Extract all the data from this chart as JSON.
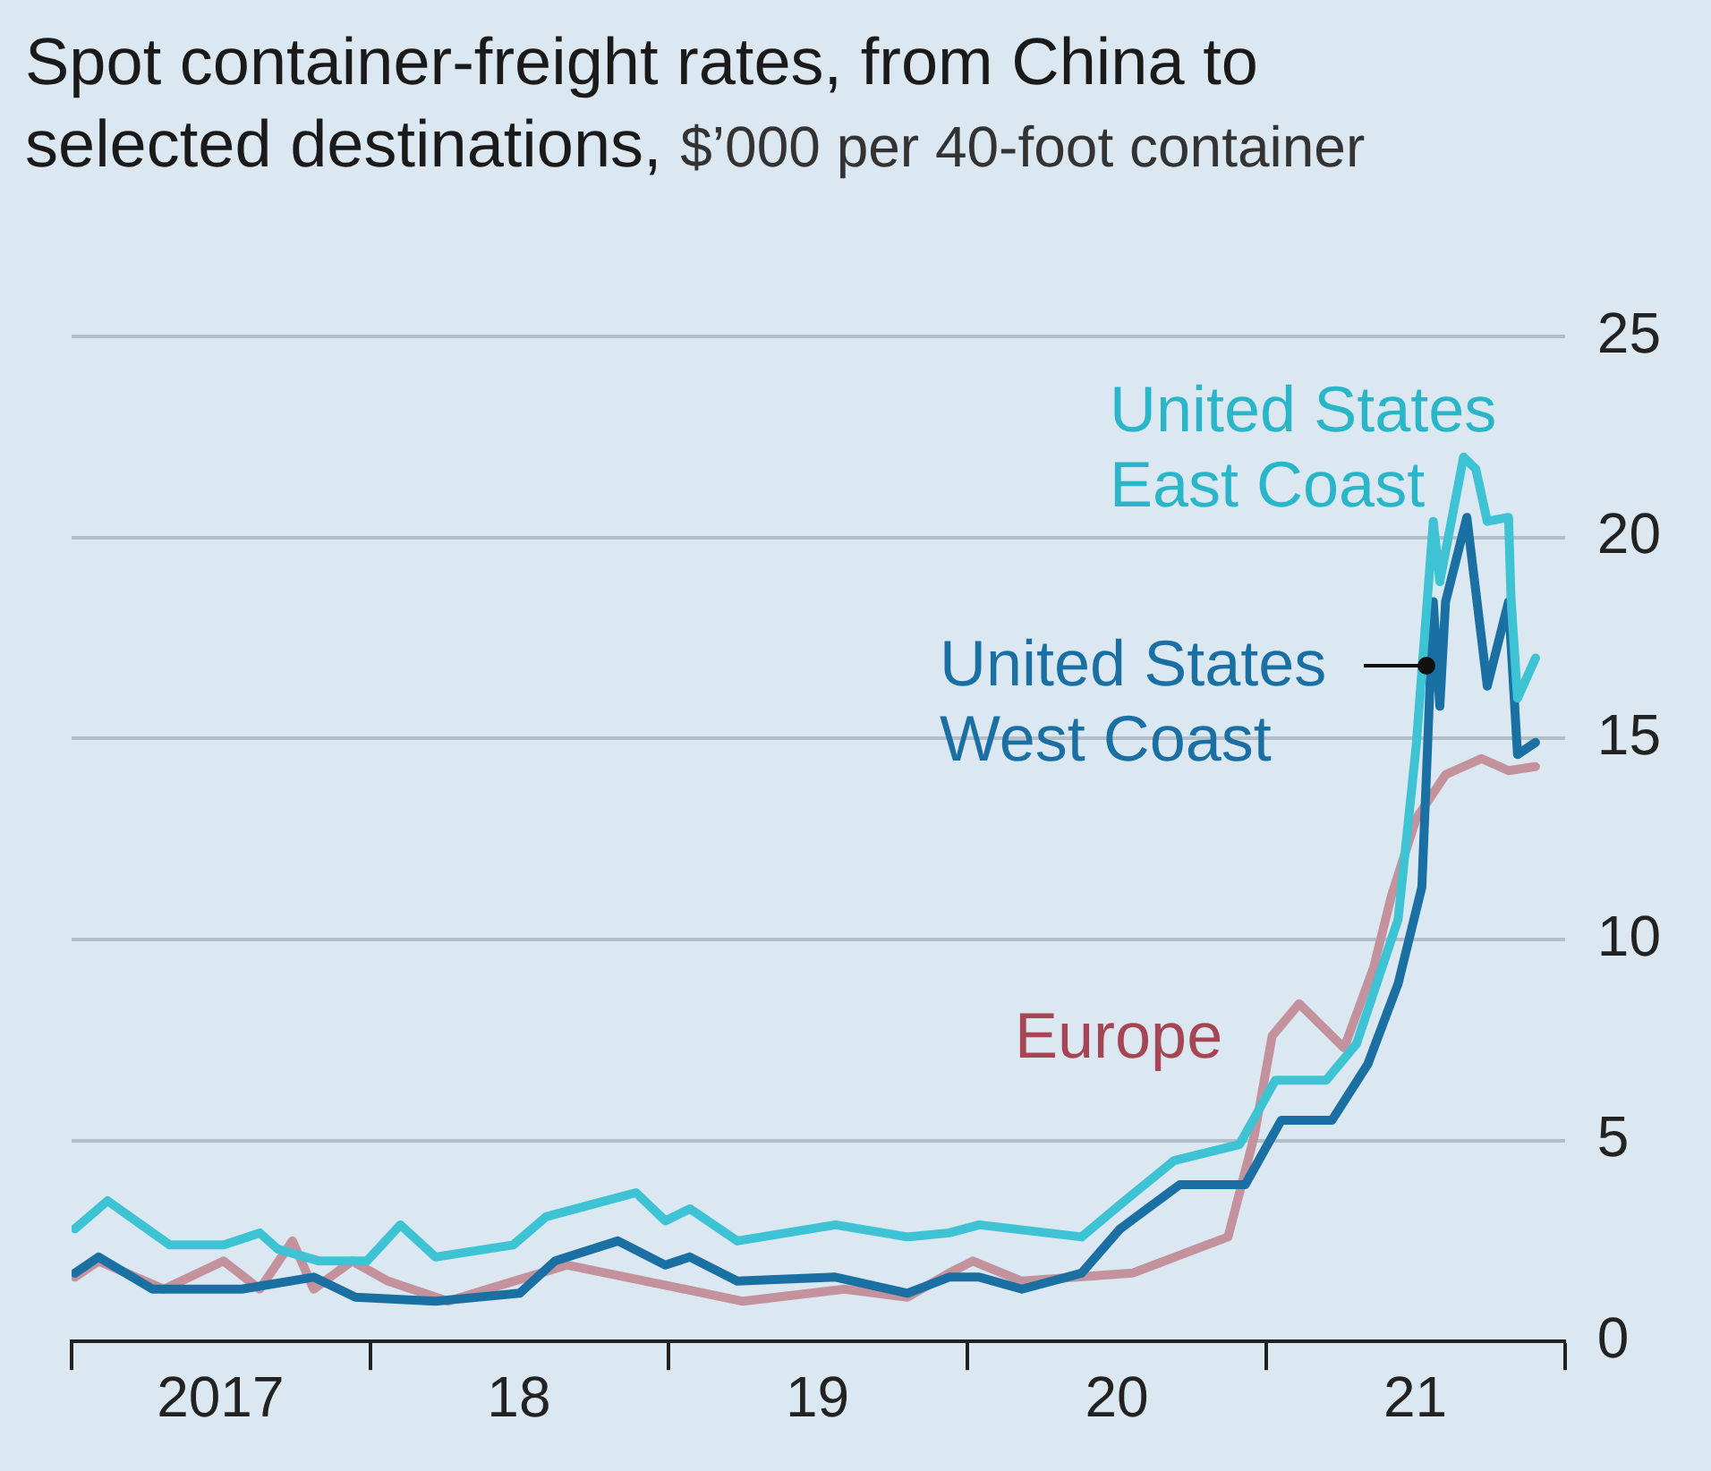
{
  "chart_data": {
    "type": "line",
    "title": "Spot container-freight rates, from China to selected destinations,",
    "subtitle": "$’000 per 40-foot container",
    "xlim": [
      "2017-01-01",
      "2022-01-01"
    ],
    "xticks": [
      {
        "value": "2017-01-01",
        "label": null
      },
      {
        "value": "2017-07-02",
        "label": "2017"
      },
      {
        "value": "2018-01-01",
        "label": null
      },
      {
        "value": "2018-07-02",
        "label": "18"
      },
      {
        "value": "2019-01-01",
        "label": null
      },
      {
        "value": "2019-07-02",
        "label": "19"
      },
      {
        "value": "2020-01-01",
        "label": null
      },
      {
        "value": "2020-07-02",
        "label": "20"
      },
      {
        "value": "2021-01-01",
        "label": null
      },
      {
        "value": "2021-07-02",
        "label": "21"
      },
      {
        "value": "2022-01-01",
        "label": null
      }
    ],
    "ylim": [
      0,
      25
    ],
    "yticks": [
      0,
      5,
      10,
      15,
      20,
      25
    ],
    "grid": "y",
    "legend": false,
    "marker": "none",
    "line_style": "solid",
    "series": [
      {
        "name": "United States East Coast",
        "color": "#3ec3d5",
        "x": [
          "2017-01-05",
          "2017-02-14",
          "2017-05-01",
          "2017-07-06",
          "2017-08-19",
          "2017-09-10",
          "2017-10-31",
          "2017-12-28",
          "2018-02-07",
          "2018-03-22",
          "2018-06-25",
          "2018-08-04",
          "2018-09-28",
          "2018-11-22",
          "2018-12-28",
          "2019-01-27",
          "2019-03-26",
          "2019-07-24",
          "2019-10-20",
          "2019-12-10",
          "2020-01-16",
          "2020-05-20",
          "2020-07-06",
          "2020-09-10",
          "2020-11-29",
          "2021-01-12",
          "2021-03-15",
          "2021-04-21",
          "2021-06-11",
          "2021-07-03",
          "2021-07-24",
          "2021-08-01",
          "2021-08-30",
          "2021-09-14",
          "2021-09-28",
          "2021-10-24",
          "2021-10-27",
          "2021-11-04",
          "2021-11-26"
        ],
        "values": [
          2.8,
          3.5,
          2.4,
          2.4,
          2.7,
          2.3,
          2.0,
          2.0,
          2.9,
          2.1,
          2.4,
          3.1,
          3.4,
          3.7,
          3.0,
          3.3,
          2.5,
          2.9,
          2.6,
          2.7,
          2.9,
          2.6,
          3.4,
          4.5,
          4.9,
          6.5,
          6.5,
          7.4,
          10.5,
          14.8,
          20.4,
          18.9,
          22.0,
          21.7,
          20.4,
          20.5,
          18.5,
          16.0,
          17.0
        ]
      },
      {
        "name": "United States West Coast",
        "color": "#1a6fa3",
        "x": [
          "2017-01-05",
          "2017-02-03",
          "2017-04-10",
          "2017-07-28",
          "2017-10-24",
          "2017-12-14",
          "2018-03-22",
          "2018-07-03",
          "2018-08-15",
          "2018-10-31",
          "2018-12-28",
          "2019-01-27",
          "2019-03-26",
          "2019-07-24",
          "2019-10-20",
          "2019-12-10",
          "2020-01-16",
          "2020-03-08",
          "2020-05-20",
          "2020-07-06",
          "2020-09-17",
          "2020-12-06",
          "2021-01-19",
          "2021-03-22",
          "2021-05-05",
          "2021-06-11",
          "2021-07-10",
          "2021-07-17",
          "2021-07-24",
          "2021-08-01",
          "2021-08-08",
          "2021-09-03",
          "2021-09-28",
          "2021-10-24",
          "2021-11-04",
          "2021-11-26"
        ],
        "values": [
          1.7,
          2.1,
          1.3,
          1.3,
          1.6,
          1.1,
          1.0,
          1.2,
          2.0,
          2.5,
          1.9,
          2.1,
          1.5,
          1.6,
          1.2,
          1.6,
          1.6,
          1.3,
          1.7,
          2.8,
          3.9,
          3.9,
          5.5,
          5.5,
          6.9,
          8.9,
          11.3,
          14.8,
          18.4,
          15.8,
          18.4,
          20.5,
          16.3,
          18.4,
          14.6,
          14.9
        ]
      },
      {
        "name": "Europe",
        "color": "#c4929c",
        "x": [
          "2017-01-05",
          "2017-02-03",
          "2017-04-24",
          "2017-07-06",
          "2017-08-19",
          "2017-09-28",
          "2017-10-24",
          "2017-12-10",
          "2018-01-23",
          "2018-04-06",
          "2018-08-30",
          "2018-12-28",
          "2019-04-02",
          "2019-08-04",
          "2019-10-20",
          "2019-12-10",
          "2020-01-08",
          "2020-03-08",
          "2020-07-21",
          "2020-09-24",
          "2020-11-15",
          "2020-12-17",
          "2021-01-08",
          "2021-02-10",
          "2021-04-06",
          "2021-05-12",
          "2021-06-03",
          "2021-07-03",
          "2021-08-08",
          "2021-09-21",
          "2021-10-24",
          "2021-11-26"
        ],
        "values": [
          1.6,
          2.0,
          1.3,
          2.0,
          1.3,
          2.5,
          1.3,
          2.0,
          1.5,
          1.0,
          1.9,
          1.4,
          1.0,
          1.3,
          1.1,
          1.7,
          2.0,
          1.5,
          1.7,
          2.2,
          2.6,
          5.1,
          7.6,
          8.4,
          7.3,
          9.3,
          11.1,
          13.0,
          14.1,
          14.5,
          14.2,
          14.3
        ]
      }
    ]
  }
}
